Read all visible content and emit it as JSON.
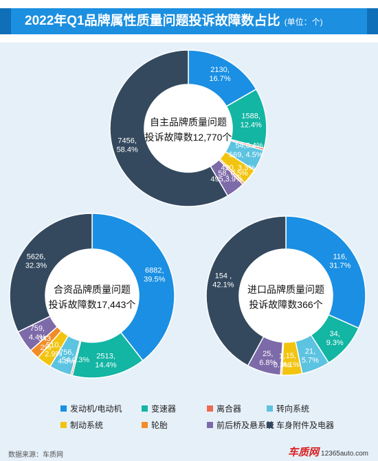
{
  "title": "2022年Q1品牌属性质量问题投诉故障数占比",
  "unit": "(单位：个)",
  "legend": [
    {
      "label": "发动机/电动机",
      "color": "#1a8fe3"
    },
    {
      "label": "变速器",
      "color": "#13b5a3"
    },
    {
      "label": "离合器",
      "color": "#ee6a4f"
    },
    {
      "label": "转向系统",
      "color": "#5cc3e0"
    },
    {
      "label": "制动系统",
      "color": "#f2c40f"
    },
    {
      "label": "轮胎",
      "color": "#f28c28"
    },
    {
      "label": "前后桥及悬系统",
      "color": "#7d6aa8"
    },
    {
      "label": "车身附件及电器",
      "color": "#34495e"
    }
  ],
  "source": "数据来源：车质网",
  "logo": {
    "brand": "车质网",
    "site": "12365auto.com"
  },
  "chart_data": [
    {
      "type": "pie",
      "center_line1": "自主品牌质量问题",
      "center_line2": "投诉故障数12,770个",
      "slices": [
        {
          "name": "发动机/电动机",
          "value": 2130,
          "pct": 16.7,
          "label": [
            "2130,",
            "16.7%"
          ]
        },
        {
          "name": "变速器",
          "value": 1588,
          "pct": 12.4,
          "label": [
            "1588,",
            "12.4%"
          ]
        },
        {
          "name": "离合器",
          "value": 54,
          "pct": 0.4,
          "label": [
            "54,0.4%"
          ]
        },
        {
          "name": "转向系统",
          "value": 569,
          "pct": 4.5,
          "label": [
            "569, 4.5%"
          ]
        },
        {
          "name": "制动系统",
          "value": 420,
          "pct": 3.3,
          "label": [
            "420, 3.3%"
          ]
        },
        {
          "name": "轮胎",
          "value": 58,
          "pct": 0.5,
          "label": [
            "58, 0.5%"
          ]
        },
        {
          "name": "前后桥及悬系统",
          "value": 495,
          "pct": 3.9,
          "label": [
            "495,3.9%"
          ]
        },
        {
          "name": "车身附件及电器",
          "value": 7456,
          "pct": 58.4,
          "label": [
            "7456,",
            "58.4%"
          ]
        }
      ]
    },
    {
      "type": "pie",
      "center_line1": "合资品牌质量问题",
      "center_line2": "投诉故障数17,443个",
      "slices": [
        {
          "name": "发动机/电动机",
          "value": 6882,
          "pct": 39.5,
          "label": [
            "6882,",
            "39.5%"
          ]
        },
        {
          "name": "变速器",
          "value": 2513,
          "pct": 14.4,
          "label": [
            "2513,",
            "14.4%"
          ]
        },
        {
          "name": "离合器",
          "value": 54,
          "pct": 0.3,
          "label": [
            "54,0.3%"
          ]
        },
        {
          "name": "转向系统",
          "value": 756,
          "pct": 4.3,
          "label": [
            "756,",
            "4.3%"
          ]
        },
        {
          "name": "制动系统",
          "value": 510,
          "pct": 2.9,
          "label": [
            "510,",
            "2.9%"
          ]
        },
        {
          "name": "轮胎",
          "value": 343,
          "pct": 2,
          "label": [
            "343,",
            "2%"
          ]
        },
        {
          "name": "前后桥及悬系统",
          "value": 759,
          "pct": 4.4,
          "label": [
            "759,",
            "4.4%"
          ]
        },
        {
          "name": "车身附件及电器",
          "value": 5626,
          "pct": 32.3,
          "label": [
            "5626,",
            "32.3%"
          ]
        }
      ]
    },
    {
      "type": "pie",
      "center_line1": "进口品牌质量问题",
      "center_line2": "投诉故障数366个",
      "slices": [
        {
          "name": "发动机/电动机",
          "value": 116,
          "pct": 31.7,
          "label": [
            "116,",
            "31.7%"
          ]
        },
        {
          "name": "变速器",
          "value": 34,
          "pct": 9.3,
          "label": [
            "34,",
            "9.3%"
          ]
        },
        {
          "name": "离合器",
          "value": 0,
          "pct": 0,
          "label": []
        },
        {
          "name": "转向系统",
          "value": 21,
          "pct": 5.7,
          "label": [
            "21,",
            "5.7%"
          ]
        },
        {
          "name": "制动系统",
          "value": 15,
          "pct": 4.1,
          "label": [
            "15,",
            "4.1%"
          ]
        },
        {
          "name": "轮胎",
          "value": 1,
          "pct": 0.3,
          "label": [
            "1,",
            "0.3%"
          ]
        },
        {
          "name": "前后桥及悬系统",
          "value": 25,
          "pct": 6.8,
          "label": [
            "25,",
            "6.8%"
          ]
        },
        {
          "name": "车身附件及电器",
          "value": 154,
          "pct": 42.1,
          "label": [
            "154 ,",
            "42.1%"
          ]
        }
      ]
    }
  ]
}
